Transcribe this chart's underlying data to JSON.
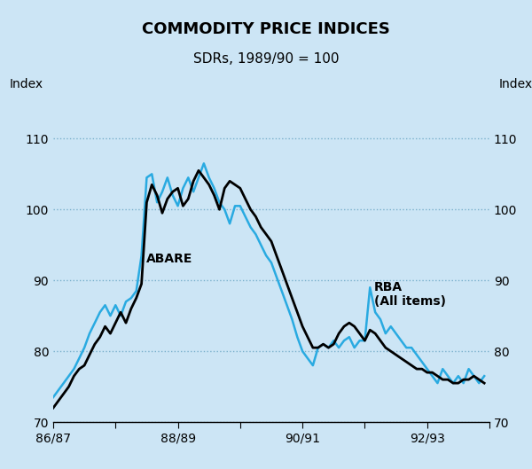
{
  "title": "COMMODITY PRICE INDICES",
  "subtitle": "SDRs, 1989/90 = 100",
  "ylabel_left": "Index",
  "ylabel_right": "Index",
  "xlim": [
    0,
    7
  ],
  "ylim": [
    70,
    115
  ],
  "yticks": [
    70,
    80,
    90,
    100,
    110
  ],
  "xtick_positions": [
    0,
    1,
    2,
    3,
    4,
    5,
    6,
    7
  ],
  "xtick_label_positions": [
    0,
    2,
    4,
    6
  ],
  "xtick_labels": [
    "86/87",
    "88/89",
    "90/91",
    "92/93"
  ],
  "background_color": "#cce5f5",
  "outer_bg": "#cce5f5",
  "grid_color": "#7ab0cc",
  "abare_color": "#000000",
  "rba_color": "#29aae1",
  "abare_label": "ABARE",
  "rba_label": "RBA\n(All items)",
  "abare_lw": 2.0,
  "rba_lw": 1.8,
  "abare_x": [
    0.0,
    0.083,
    0.167,
    0.25,
    0.333,
    0.417,
    0.5,
    0.583,
    0.667,
    0.75,
    0.833,
    0.917,
    1.0,
    1.083,
    1.167,
    1.25,
    1.333,
    1.417,
    1.5,
    1.583,
    1.667,
    1.75,
    1.833,
    1.917,
    2.0,
    2.083,
    2.167,
    2.25,
    2.333,
    2.417,
    2.5,
    2.583,
    2.667,
    2.75,
    2.833,
    2.917,
    3.0,
    3.083,
    3.167,
    3.25,
    3.333,
    3.417,
    3.5,
    3.583,
    3.667,
    3.75,
    3.833,
    3.917,
    4.0,
    4.083,
    4.167,
    4.25,
    4.333,
    4.417,
    4.5,
    4.583,
    4.667,
    4.75,
    4.833,
    4.917,
    5.0,
    5.083,
    5.167,
    5.25,
    5.333,
    5.417,
    5.5,
    5.583,
    5.667,
    5.75,
    5.833,
    5.917,
    6.0,
    6.083,
    6.167,
    6.25,
    6.333,
    6.417,
    6.5,
    6.583,
    6.667,
    6.75,
    6.833,
    6.917
  ],
  "abare_y": [
    72.0,
    73.0,
    74.0,
    75.0,
    76.5,
    77.5,
    78.0,
    79.5,
    81.0,
    82.0,
    83.5,
    82.5,
    84.0,
    85.5,
    84.0,
    86.0,
    87.5,
    89.5,
    101.0,
    103.5,
    102.0,
    99.5,
    101.5,
    102.5,
    103.0,
    100.5,
    101.5,
    104.0,
    105.5,
    104.5,
    103.5,
    102.0,
    100.0,
    103.0,
    104.0,
    103.5,
    103.0,
    101.5,
    100.0,
    99.0,
    97.5,
    96.5,
    95.5,
    93.5,
    91.5,
    89.5,
    87.5,
    85.5,
    83.5,
    82.0,
    80.5,
    80.5,
    81.0,
    80.5,
    81.0,
    82.5,
    83.5,
    84.0,
    83.5,
    82.5,
    81.5,
    83.0,
    82.5,
    81.5,
    80.5,
    80.0,
    79.5,
    79.0,
    78.5,
    78.0,
    77.5,
    77.5,
    77.0,
    77.0,
    76.5,
    76.0,
    76.0,
    75.5,
    75.5,
    76.0,
    76.0,
    76.5,
    76.0,
    75.5
  ],
  "rba_x": [
    0.0,
    0.083,
    0.167,
    0.25,
    0.333,
    0.417,
    0.5,
    0.583,
    0.667,
    0.75,
    0.833,
    0.917,
    1.0,
    1.083,
    1.167,
    1.25,
    1.333,
    1.417,
    1.5,
    1.583,
    1.667,
    1.75,
    1.833,
    1.917,
    2.0,
    2.083,
    2.167,
    2.25,
    2.333,
    2.417,
    2.5,
    2.583,
    2.667,
    2.75,
    2.833,
    2.917,
    3.0,
    3.083,
    3.167,
    3.25,
    3.333,
    3.417,
    3.5,
    3.583,
    3.667,
    3.75,
    3.833,
    3.917,
    4.0,
    4.083,
    4.167,
    4.25,
    4.333,
    4.417,
    4.5,
    4.583,
    4.667,
    4.75,
    4.833,
    4.917,
    5.0,
    5.083,
    5.167,
    5.25,
    5.333,
    5.417,
    5.5,
    5.583,
    5.667,
    5.75,
    5.833,
    5.917,
    6.0,
    6.083,
    6.167,
    6.25,
    6.333,
    6.417,
    6.5,
    6.583,
    6.667,
    6.75,
    6.833,
    6.917
  ],
  "rba_y": [
    73.5,
    74.5,
    75.5,
    76.5,
    77.5,
    79.0,
    80.5,
    82.5,
    84.0,
    85.5,
    86.5,
    85.0,
    86.5,
    85.0,
    87.0,
    87.5,
    88.5,
    93.5,
    104.5,
    105.0,
    101.0,
    102.5,
    104.5,
    102.0,
    100.5,
    103.0,
    104.5,
    102.5,
    104.5,
    106.5,
    104.5,
    103.0,
    101.0,
    100.0,
    98.0,
    100.5,
    100.5,
    99.0,
    97.5,
    96.5,
    95.0,
    93.5,
    92.5,
    90.5,
    88.5,
    86.5,
    84.5,
    82.0,
    80.0,
    79.0,
    78.0,
    80.5,
    81.0,
    80.5,
    81.5,
    80.5,
    81.5,
    82.0,
    80.5,
    81.5,
    81.5,
    89.0,
    85.5,
    84.5,
    82.5,
    83.5,
    82.5,
    81.5,
    80.5,
    80.5,
    79.5,
    78.5,
    77.5,
    76.5,
    75.5,
    77.5,
    76.5,
    75.5,
    76.5,
    75.5,
    77.5,
    76.5,
    75.5,
    76.5
  ]
}
